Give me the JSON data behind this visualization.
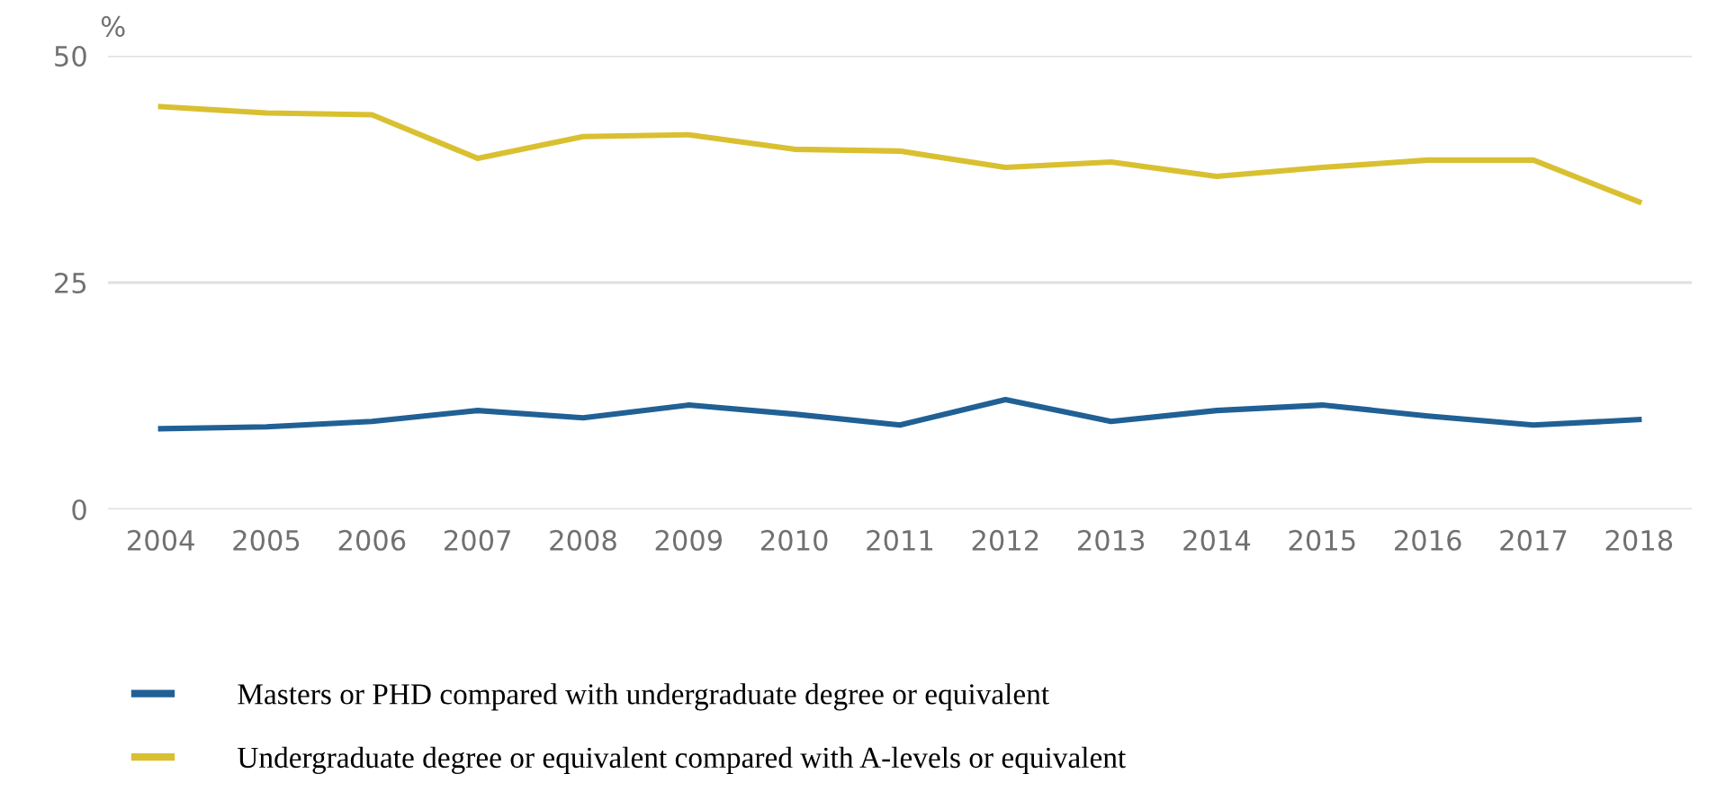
{
  "chart_data": {
    "type": "line",
    "ylabel": "%",
    "categories": [
      "2004",
      "2005",
      "2006",
      "2007",
      "2008",
      "2009",
      "2010",
      "2011",
      "2012",
      "2013",
      "2014",
      "2015",
      "2016",
      "2017",
      "2018"
    ],
    "series": [
      {
        "name": "Masters or PHD compared with undergraduate degree or equivalent",
        "color": "#206095",
        "values": [
          8.9,
          9.1,
          9.7,
          10.9,
          10.1,
          11.5,
          10.5,
          9.3,
          12.1,
          9.7,
          10.9,
          11.5,
          10.3,
          9.3,
          9.9
        ]
      },
      {
        "name": "Undergraduate degree or equivalent compared with A-levels or equivalent",
        "color": "#d9c031",
        "values": [
          44.4,
          43.7,
          43.5,
          38.7,
          41.1,
          41.3,
          39.7,
          39.5,
          37.7,
          38.3,
          36.7,
          37.7,
          38.5,
          38.5,
          33.9
        ]
      }
    ],
    "ylim": [
      0,
      50
    ],
    "yticks": [
      0,
      25,
      50
    ],
    "grid": "y",
    "legend": "bottom",
    "marker": "none",
    "line_style": "solid"
  }
}
